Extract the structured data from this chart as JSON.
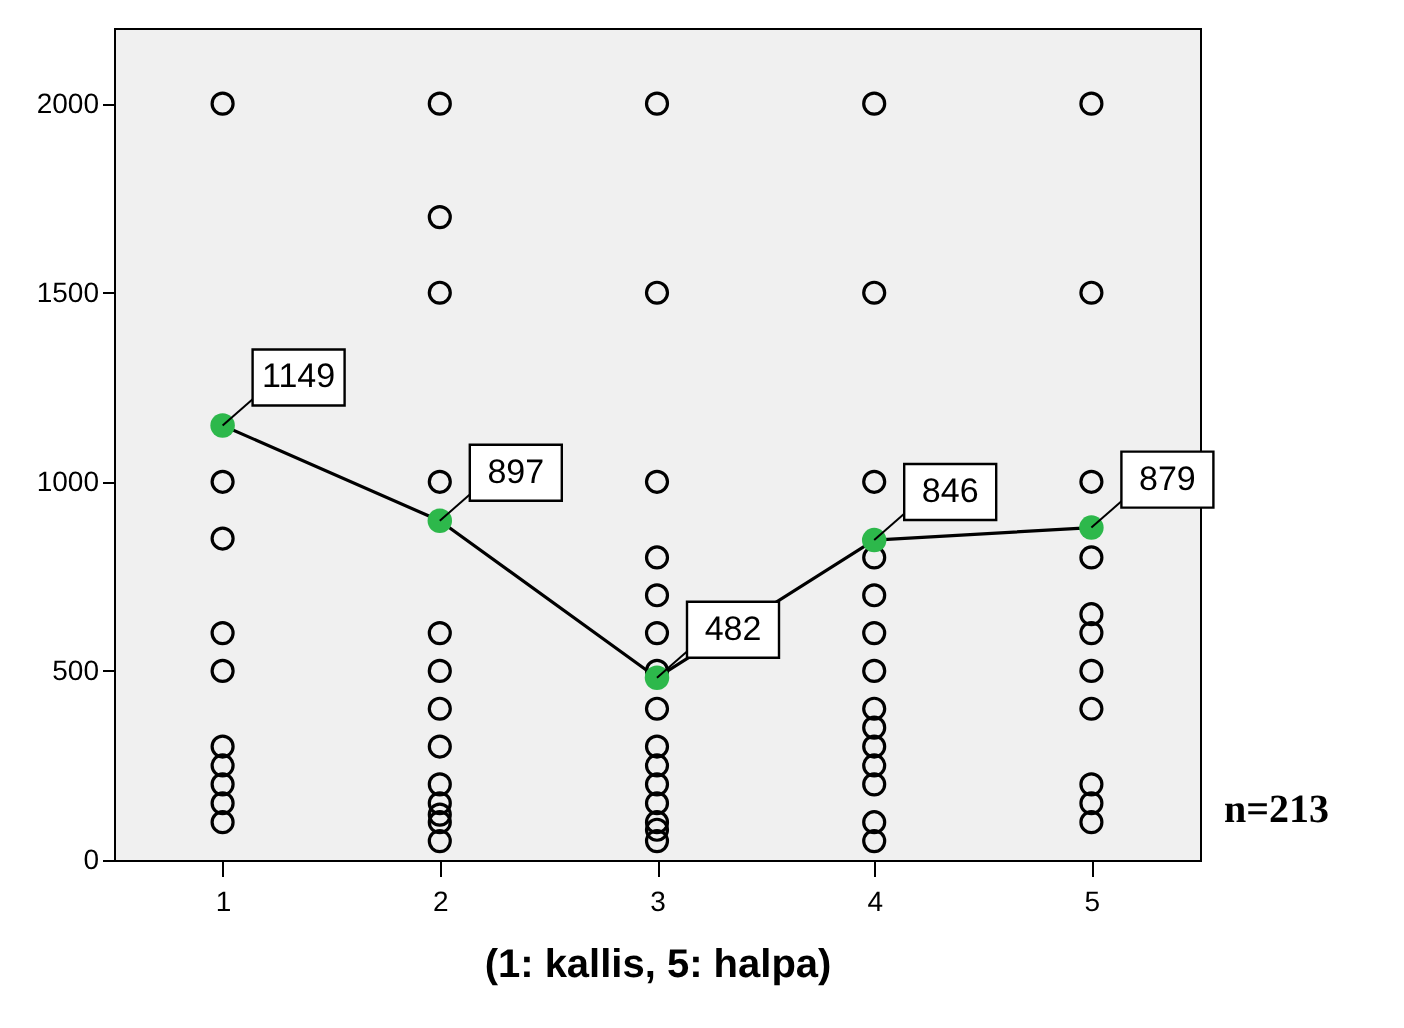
{
  "chart_data": {
    "type": "scatter",
    "xlabel": "(1: kallis, 5: halpa)",
    "categories": [
      "1",
      "2",
      "3",
      "4",
      "5"
    ],
    "ylim": [
      0,
      2200
    ],
    "yticks": [
      0,
      500,
      1000,
      1500,
      2000
    ],
    "grid": false,
    "annotations": [
      "n=213"
    ],
    "series": [
      {
        "marker": "circle",
        "color": "#000000",
        "x": [
          "1",
          "1",
          "1",
          "1",
          "1",
          "1",
          "1",
          "1",
          "1",
          "1",
          "2",
          "2",
          "2",
          "2",
          "2",
          "2",
          "2",
          "2",
          "2",
          "2",
          "2",
          "2",
          "2",
          "3",
          "3",
          "3",
          "3",
          "3",
          "3",
          "3",
          "3",
          "3",
          "3",
          "3",
          "3",
          "3",
          "3",
          "3",
          "4",
          "4",
          "4",
          "4",
          "4",
          "4",
          "4",
          "4",
          "4",
          "4",
          "4",
          "4",
          "4",
          "4",
          "5",
          "5",
          "5",
          "5",
          "5",
          "5",
          "5",
          "5",
          "5",
          "5",
          "5"
        ],
        "values": [
          2000,
          1000,
          850,
          600,
          500,
          300,
          250,
          200,
          150,
          100,
          2000,
          1700,
          1500,
          1000,
          600,
          500,
          400,
          300,
          200,
          150,
          120,
          100,
          50,
          2000,
          1500,
          1000,
          800,
          700,
          600,
          500,
          400,
          300,
          250,
          200,
          150,
          100,
          80,
          50,
          2000,
          1500,
          1000,
          800,
          700,
          600,
          500,
          400,
          350,
          300,
          250,
          200,
          100,
          50,
          2000,
          1500,
          1000,
          800,
          650,
          600,
          500,
          400,
          200,
          150,
          100
        ]
      },
      {
        "type": "line",
        "marker": "circle",
        "color": "#2db84b",
        "values": [
          1149,
          897,
          482,
          846,
          879
        ],
        "value_labels": [
          "1149",
          "897",
          "482",
          "846",
          "879"
        ]
      }
    ]
  }
}
